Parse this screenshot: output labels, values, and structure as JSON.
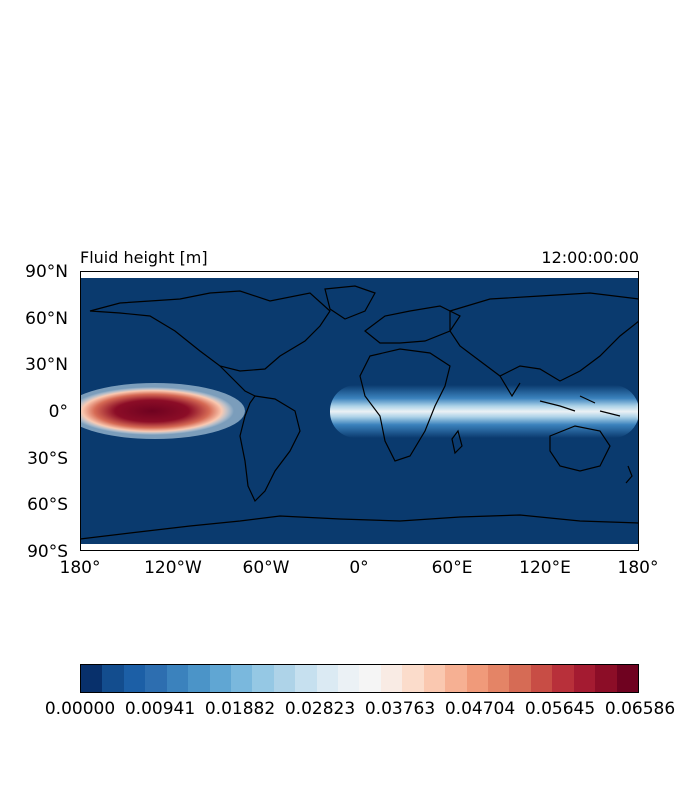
{
  "map": {
    "title_left": "Fluid height [m]",
    "title_right": "12:00:00:00",
    "background_color": "#0a3a6e",
    "lat_ticks": [
      "90°N",
      "60°N",
      "30°N",
      "0°",
      "30°S",
      "60°S",
      "90°S"
    ],
    "lon_ticks": [
      "180°",
      "120°W",
      "60°W",
      "0°",
      "60°E",
      "120°E",
      "180°"
    ],
    "features": [
      "coastlines"
    ],
    "colormap": "RdBu_r"
  },
  "colorbar": {
    "tick_labels": [
      "0.00000",
      "0.00941",
      "0.01882",
      "0.02823",
      "0.03763",
      "0.04704",
      "0.05645",
      "0.06586"
    ],
    "colors": [
      "#08306b",
      "#134d8e",
      "#1c5fa6",
      "#2d6eb0",
      "#3b82bd",
      "#4b94c8",
      "#60a6d3",
      "#7ab8dd",
      "#95c8e4",
      "#aed3e8",
      "#c6e0ef",
      "#dbeaf3",
      "#ebf1f5",
      "#f5f5f5",
      "#f9ebe4",
      "#fbdccb",
      "#fac8b0",
      "#f6b093",
      "#f09a7a",
      "#e48466",
      "#d66b55",
      "#c84d45",
      "#b8303a",
      "#a41b31",
      "#8c0d27",
      "#6f0220"
    ]
  }
}
